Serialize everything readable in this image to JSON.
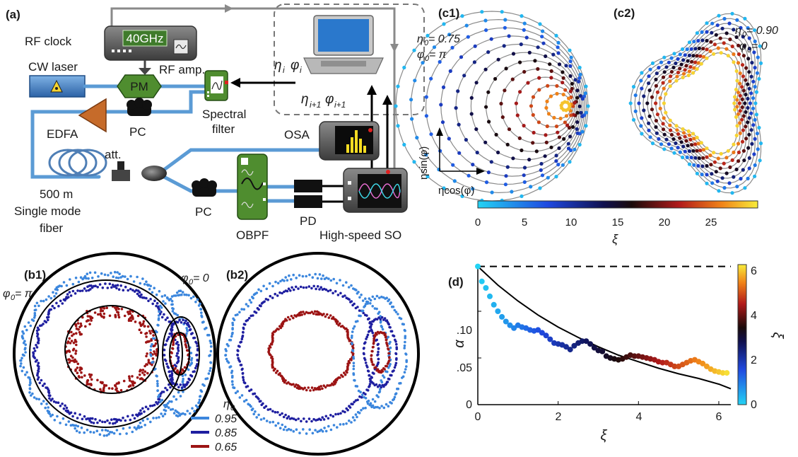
{
  "panel_a": {
    "tag": "(a)",
    "rf_clock": "RF clock",
    "rf_display": "40GHz",
    "cw_laser": "CW laser",
    "rf_amp": "RF amp.",
    "pm": "PM",
    "spectral_filter_line1": "Spectral",
    "spectral_filter_line2": "filter",
    "pc_top": "PC",
    "pc_bottom": "PC",
    "edfa": "EDFA",
    "att": "att.",
    "fiber_line1": "500 m",
    "fiber_line2": "Single mode",
    "fiber_line3": "fiber",
    "osa": "OSA",
    "obpf": "OBPF",
    "pd": "PD",
    "scope": "High-speed SO",
    "eta_i": "η",
    "eta_i_sub": "i",
    "phi_i": "φ",
    "phi_i_sub": "i",
    "eta_i1": "η",
    "eta_i1_sub": "i+1",
    "phi_i1": "φ",
    "phi_i1_sub": "i+1"
  },
  "panel_c": {
    "tag1": "(c1)",
    "tag2": "(c2)",
    "c1_eta": "η",
    "c1_eta_sub": "0",
    "c1_eta_val": " = 0.75",
    "c1_phi": "φ",
    "c1_phi_sub": "0",
    "c1_phi_val": " = π",
    "c2_eta": "η",
    "c2_eta_sub": "0",
    "c2_eta_val": " = 0.90",
    "c2_phi": "φ",
    "c2_phi_sub": "0",
    "c2_phi_val": " = 0",
    "y_axis": "ηsin(φ)",
    "x_axis": "ηcos(φ)",
    "colorbar_ticks": [
      "0",
      "5",
      "10",
      "15",
      "20",
      "25"
    ],
    "colorbar_label": "ξ"
  },
  "panel_b": {
    "tag1": "(b1)",
    "tag2": "(b2)",
    "phi_pi_label": "φ",
    "phi_pi_sub": "0",
    "phi_pi_val": " = π",
    "phi_zero_label": "φ",
    "phi_zero_sub": "0",
    "phi_zero_val": " = 0",
    "legend_title": "η",
    "legend_title_sub": "0",
    "legend": [
      {
        "label": "0.95",
        "color": "#3b86dd"
      },
      {
        "label": "0.85",
        "color": "#1f1fa0"
      },
      {
        "label": "0.65",
        "color": "#9c1414"
      }
    ]
  },
  "chart_data": {
    "type": "scatter",
    "title": "(d)",
    "xlabel": "ξ",
    "ylabel": "α",
    "colorbar_label": "ξ",
    "colorbar_ticks": [
      "0",
      "2",
      "4",
      "6"
    ],
    "xlim": [
      0,
      6.3
    ],
    "ylim": [
      0,
      0.15
    ],
    "x_ticks": [
      "0",
      "2",
      "4",
      "6"
    ],
    "y_ticks": [
      "0",
      ".05",
      ".10"
    ],
    "series": [
      {
        "kind": "measured",
        "x": [
          0,
          0.1,
          0.2,
          0.3,
          0.4,
          0.5,
          0.6,
          0.7,
          0.8,
          0.9,
          1.0,
          1.1,
          1.2,
          1.3,
          1.4,
          1.5,
          1.6,
          1.7,
          1.8,
          1.9,
          2.0,
          2.1,
          2.2,
          2.3,
          2.4,
          2.5,
          2.6,
          2.7,
          2.8,
          2.9,
          3.0,
          3.1,
          3.2,
          3.3,
          3.4,
          3.5,
          3.6,
          3.7,
          3.8,
          3.9,
          4.0,
          4.1,
          4.2,
          4.3,
          4.4,
          4.5,
          4.6,
          4.7,
          4.8,
          4.9,
          5.0,
          5.1,
          5.2,
          5.3,
          5.4,
          5.5,
          5.6,
          5.7,
          5.8,
          5.9,
          6.0,
          6.1,
          6.2
        ],
        "y": [
          0.148,
          0.132,
          0.125,
          0.116,
          0.107,
          0.1,
          0.094,
          0.089,
          0.085,
          0.082,
          0.085,
          0.083,
          0.082,
          0.08,
          0.079,
          0.08,
          0.077,
          0.074,
          0.07,
          0.066,
          0.065,
          0.064,
          0.062,
          0.059,
          0.063,
          0.066,
          0.068,
          0.068,
          0.065,
          0.061,
          0.058,
          0.057,
          0.052,
          0.05,
          0.049,
          0.048,
          0.049,
          0.051,
          0.053,
          0.052,
          0.052,
          0.051,
          0.05,
          0.049,
          0.048,
          0.046,
          0.045,
          0.045,
          0.043,
          0.041,
          0.041,
          0.043,
          0.045,
          0.047,
          0.048,
          0.046,
          0.044,
          0.041,
          0.038,
          0.036,
          0.035,
          0.034,
          0.034
        ]
      },
      {
        "kind": "theory-line",
        "x": [
          0,
          0.5,
          1,
          1.5,
          2,
          2.5,
          3,
          3.5,
          4,
          4.5,
          5,
          5.5,
          6,
          6.3
        ],
        "y": [
          0.148,
          0.128,
          0.111,
          0.096,
          0.083,
          0.072,
          0.062,
          0.053,
          0.046,
          0.039,
          0.033,
          0.028,
          0.022,
          0.017
        ]
      },
      {
        "kind": "dashed-reference",
        "x": [
          0,
          6.3
        ],
        "y": [
          0.148,
          0.148
        ]
      }
    ]
  }
}
